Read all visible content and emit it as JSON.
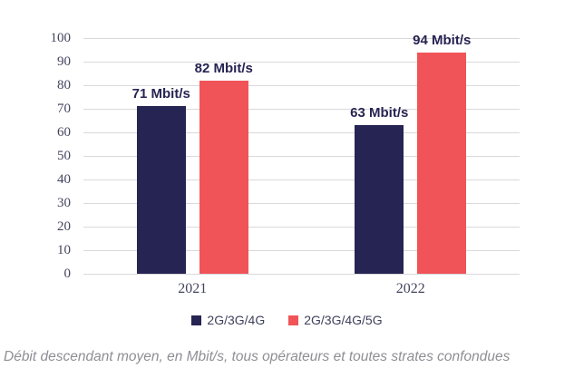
{
  "chart_data": {
    "type": "bar",
    "categories": [
      "2021",
      "2022"
    ],
    "series": [
      {
        "name": "2G/3G/4G",
        "color": "#262452",
        "values": [
          71,
          63
        ],
        "data_labels": [
          "71 Mbit/s",
          "63 Mbit/s"
        ]
      },
      {
        "name": "2G/3G/4G/5G",
        "color": "#f05458",
        "values": [
          82,
          94
        ],
        "data_labels": [
          "82 Mbit/s",
          "94 Mbit/s"
        ]
      }
    ],
    "title": "",
    "xlabel": "",
    "ylabel": "",
    "ylim": [
      0,
      100
    ],
    "ytick_step": 10,
    "yticks": [
      0,
      10,
      20,
      30,
      40,
      50,
      60,
      70,
      80,
      90,
      100
    ],
    "grid": "horizontal",
    "legend_position": "bottom",
    "caption": "Débit descendant moyen, en Mbit/s, tous opérateurs et toutes strates confondues"
  },
  "colors": {
    "background": "#ffffff",
    "gridline": "#d9d9d9",
    "tick_label": "#44455e",
    "data_label": "#262452",
    "legend_text": "#3f415c",
    "caption_text": "#8e8e96"
  }
}
